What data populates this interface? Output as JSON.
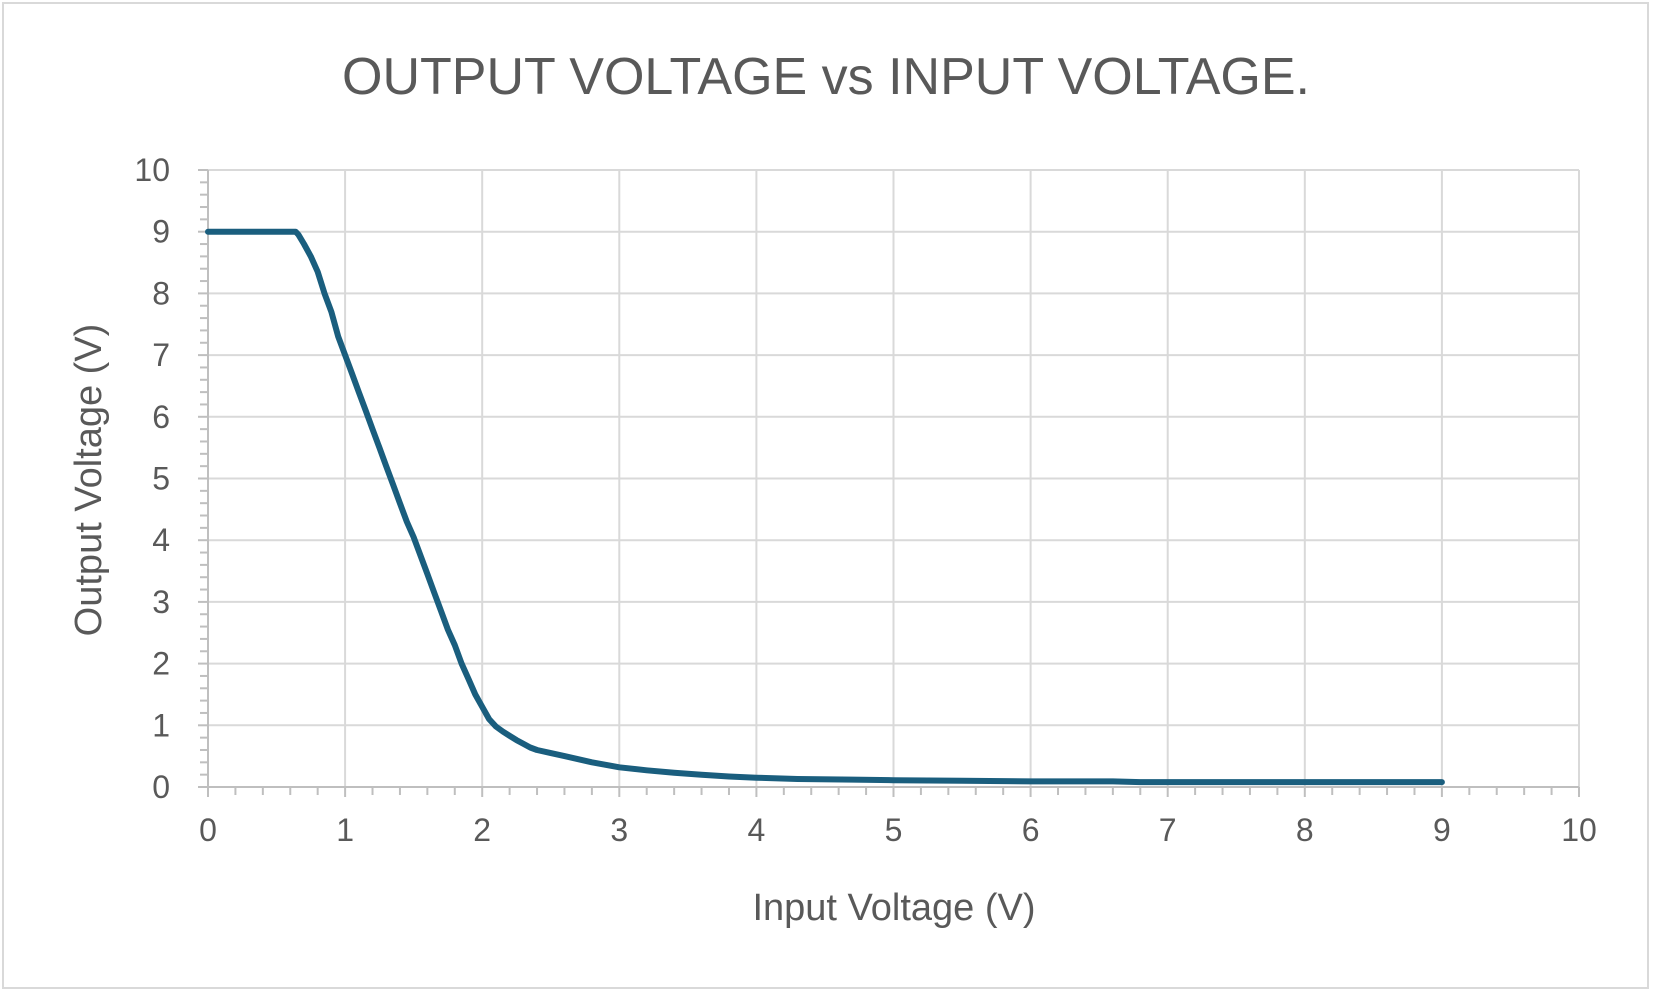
{
  "chart_data": {
    "type": "line",
    "title": "OUTPUT VOLTAGE vs INPUT VOLTAGE.",
    "xlabel": "Input Voltage (V)",
    "ylabel": "Output Voltage (V)",
    "xlim": [
      0,
      10
    ],
    "ylim": [
      0,
      10
    ],
    "x_ticks": [
      "0",
      "1",
      "2",
      "3",
      "4",
      "5",
      "6",
      "7",
      "8",
      "9",
      "10"
    ],
    "y_ticks": [
      "0",
      "1",
      "2",
      "3",
      "4",
      "5",
      "6",
      "7",
      "8",
      "9",
      "10"
    ],
    "grid": true,
    "legend": "none",
    "series_color": "#1a5e7e",
    "series": [
      {
        "x": [
          0,
          0.3,
          0.64,
          0.66,
          0.7,
          0.75,
          0.8,
          0.85,
          0.9,
          0.95,
          1.0,
          1.05,
          1.1,
          1.15,
          1.2,
          1.25,
          1.3,
          1.35,
          1.4,
          1.45,
          1.5,
          1.55,
          1.6,
          1.65,
          1.7,
          1.75,
          1.8,
          1.85,
          1.9,
          1.95,
          2.0,
          2.05,
          2.1,
          2.15,
          2.2,
          2.25,
          2.3,
          2.35,
          2.4,
          2.5,
          2.6,
          2.7,
          2.8,
          2.9,
          3.0,
          3.2,
          3.4,
          3.6,
          3.8,
          4.0,
          4.3,
          4.7,
          5.0,
          5.5,
          6.0,
          6.6,
          6.8,
          7.0,
          8.0,
          9.0
        ],
        "y": [
          9.0,
          9.0,
          9.0,
          8.95,
          8.8,
          8.6,
          8.35,
          8.0,
          7.7,
          7.3,
          7.0,
          6.7,
          6.4,
          6.1,
          5.8,
          5.5,
          5.2,
          4.9,
          4.6,
          4.3,
          4.05,
          3.75,
          3.45,
          3.15,
          2.85,
          2.55,
          2.3,
          2.0,
          1.75,
          1.5,
          1.3,
          1.1,
          0.98,
          0.9,
          0.83,
          0.76,
          0.7,
          0.64,
          0.6,
          0.55,
          0.5,
          0.45,
          0.4,
          0.36,
          0.32,
          0.27,
          0.23,
          0.2,
          0.17,
          0.15,
          0.13,
          0.12,
          0.11,
          0.1,
          0.09,
          0.09,
          0.08,
          0.08,
          0.08,
          0.08
        ]
      }
    ]
  }
}
